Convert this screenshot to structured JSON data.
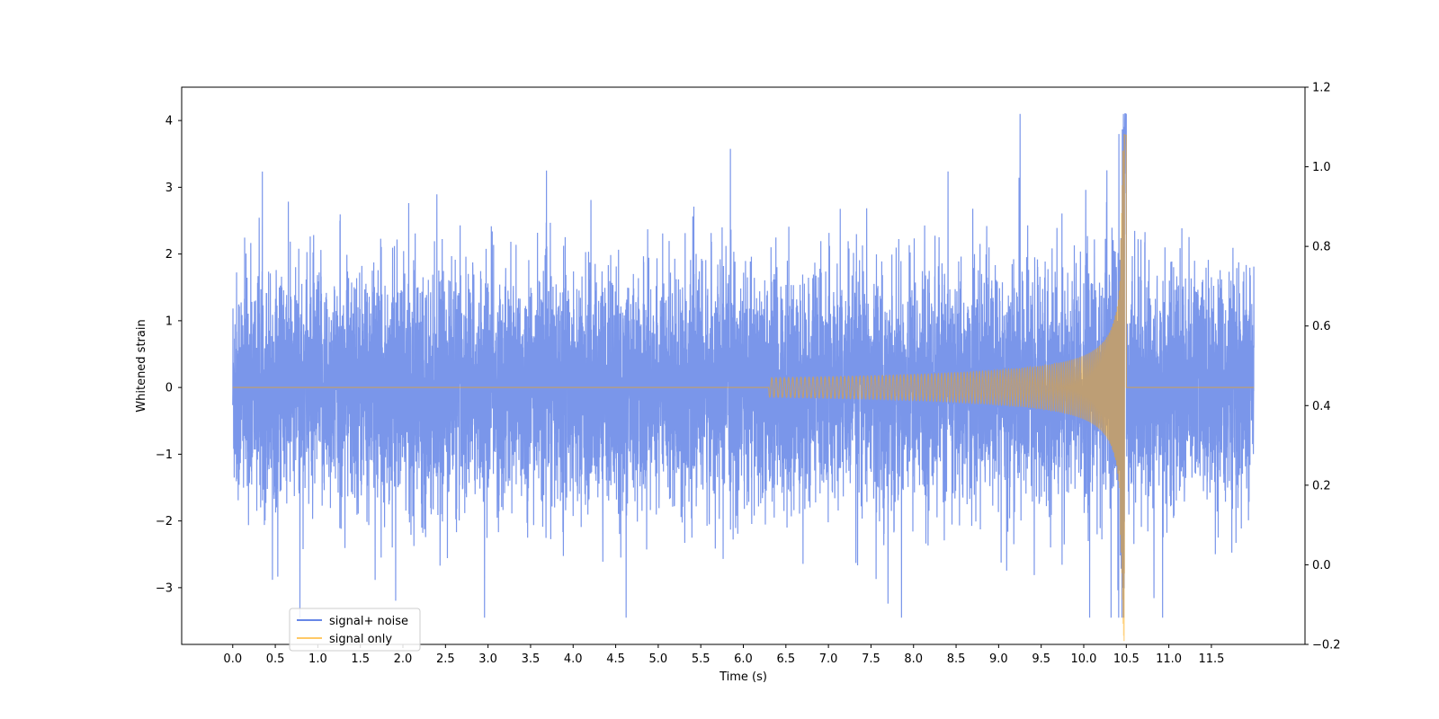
{
  "chart_data": {
    "type": "line",
    "title": "",
    "xlabel": "Time (s)",
    "ylabel": "Whitened strain",
    "xlim": [
      -0.6,
      12.6
    ],
    "ylim": [
      -3.85,
      4.5
    ],
    "y2lim": [
      -0.2,
      1.2
    ],
    "xticks": [
      "0.0",
      "0.5",
      "1.0",
      "1.5",
      "2.0",
      "2.5",
      "3.0",
      "3.5",
      "4.0",
      "4.5",
      "5.0",
      "5.5",
      "6.0",
      "6.5",
      "7.0",
      "7.5",
      "8.0",
      "8.5",
      "9.0",
      "9.5",
      "10.0",
      "10.5",
      "11.0",
      "11.5"
    ],
    "yticks": [
      "−3",
      "−2",
      "−1",
      "0",
      "1",
      "2",
      "3",
      "4"
    ],
    "y2ticks": [
      "−0.2",
      "0.0",
      "0.2",
      "0.4",
      "0.6",
      "0.8",
      "1.0",
      "1.2"
    ],
    "grid": false,
    "legend_position": "lower-left",
    "series": [
      {
        "name": "signal+ noise",
        "color": "#4169e1",
        "opacity": 0.7,
        "description_envelope": {
          "t_start": 0.0,
          "t_end": 12.0,
          "noise_sigma": 0.85,
          "max_peak": 4.1,
          "min_trough": -3.45
        }
      },
      {
        "name": "signal only",
        "color": "#ffa500",
        "opacity": 0.5,
        "chirp": {
          "t_start": 6.3,
          "t_merger": 10.48,
          "peak_amplitude": 3.8,
          "t_end": 12.0
        }
      }
    ]
  }
}
